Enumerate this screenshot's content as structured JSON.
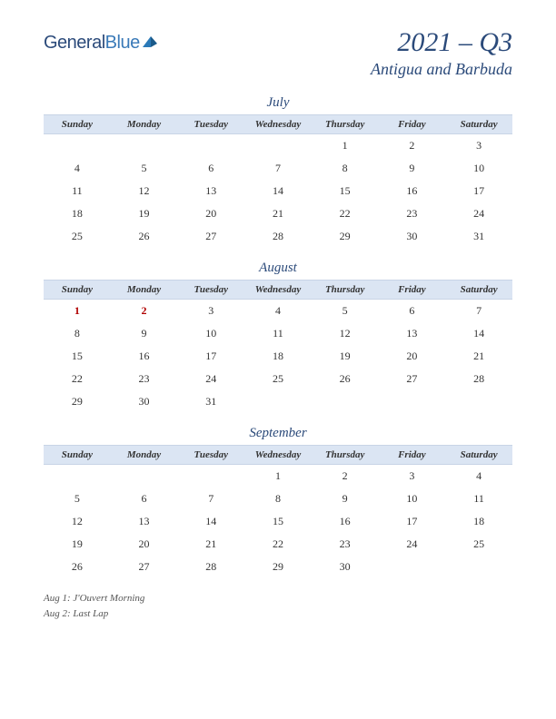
{
  "logo": {
    "text1": "General",
    "text2": "Blue"
  },
  "header": {
    "title": "2021 – Q3",
    "subtitle": "Antigua and Barbuda"
  },
  "day_headers": [
    "Sunday",
    "Monday",
    "Tuesday",
    "Wednesday",
    "Thursday",
    "Friday",
    "Saturday"
  ],
  "months": [
    {
      "name": "July",
      "weeks": [
        [
          "",
          "",
          "",
          "",
          "1",
          "2",
          "3"
        ],
        [
          "4",
          "5",
          "6",
          "7",
          "8",
          "9",
          "10"
        ],
        [
          "11",
          "12",
          "13",
          "14",
          "15",
          "16",
          "17"
        ],
        [
          "18",
          "19",
          "20",
          "21",
          "22",
          "23",
          "24"
        ],
        [
          "25",
          "26",
          "27",
          "28",
          "29",
          "30",
          "31"
        ]
      ],
      "holidays": []
    },
    {
      "name": "August",
      "weeks": [
        [
          "1",
          "2",
          "3",
          "4",
          "5",
          "6",
          "7"
        ],
        [
          "8",
          "9",
          "10",
          "11",
          "12",
          "13",
          "14"
        ],
        [
          "15",
          "16",
          "17",
          "18",
          "19",
          "20",
          "21"
        ],
        [
          "22",
          "23",
          "24",
          "25",
          "26",
          "27",
          "28"
        ],
        [
          "29",
          "30",
          "31",
          "",
          "",
          "",
          ""
        ]
      ],
      "holidays": [
        "1",
        "2"
      ]
    },
    {
      "name": "September",
      "weeks": [
        [
          "",
          "",
          "",
          "1",
          "2",
          "3",
          "4"
        ],
        [
          "5",
          "6",
          "7",
          "8",
          "9",
          "10",
          "11"
        ],
        [
          "12",
          "13",
          "14",
          "15",
          "16",
          "17",
          "18"
        ],
        [
          "19",
          "20",
          "21",
          "22",
          "23",
          "24",
          "25"
        ],
        [
          "26",
          "27",
          "28",
          "29",
          "30",
          "",
          ""
        ]
      ],
      "holidays": []
    }
  ],
  "notes": [
    "Aug 1: J'Ouvert Morning",
    "Aug 2: Last Lap"
  ],
  "colors": {
    "header_bg": "#dbe5f3",
    "accent": "#2b4a7a",
    "holiday": "#b00000"
  }
}
